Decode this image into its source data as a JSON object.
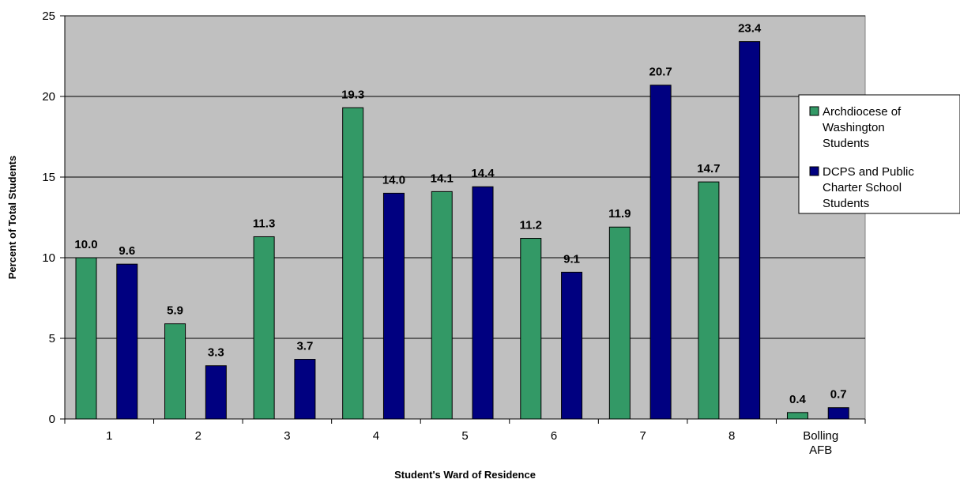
{
  "chart_data": {
    "type": "bar",
    "categories": [
      "1",
      "2",
      "3",
      "4",
      "5",
      "6",
      "7",
      "8",
      "Bolling AFB"
    ],
    "series": [
      {
        "name": "Archdiocese of Washington Students",
        "values": [
          10.0,
          5.9,
          11.3,
          19.3,
          14.1,
          11.2,
          11.9,
          14.7,
          0.4
        ],
        "labels": [
          "10.0",
          "5.9",
          "11.3",
          "19.3",
          "14.1",
          "11.2",
          "11.9",
          "14.7",
          "0.4"
        ],
        "legend_lines": [
          "Archdiocese of",
          "Washington",
          "Students"
        ],
        "color": "#339966"
      },
      {
        "name": "DCPS and Public Charter School Students",
        "values": [
          9.6,
          3.3,
          3.7,
          14.0,
          14.4,
          9.1,
          20.7,
          23.4,
          0.7
        ],
        "labels": [
          "9.6",
          "3.3",
          "3.7",
          "14.0",
          "14.4",
          "9.1",
          "20.7",
          "23.4",
          "0.7"
        ],
        "legend_lines": [
          "DCPS and Public",
          "Charter School",
          "Students"
        ],
        "color": "#000080"
      }
    ],
    "category_lines": [
      [
        "1"
      ],
      [
        "2"
      ],
      [
        "3"
      ],
      [
        "4"
      ],
      [
        "5"
      ],
      [
        "6"
      ],
      [
        "7"
      ],
      [
        "8"
      ],
      [
        "Bolling",
        "AFB"
      ]
    ],
    "xlabel": "Student's Ward of Residence",
    "ylabel": "Percent of Total Students",
    "ylim": [
      0,
      25
    ],
    "yticks": [
      "0",
      "5",
      "10",
      "15",
      "20",
      "25"
    ],
    "plot_background": "#c0c0c0",
    "grid": true,
    "legend_position": "right"
  }
}
